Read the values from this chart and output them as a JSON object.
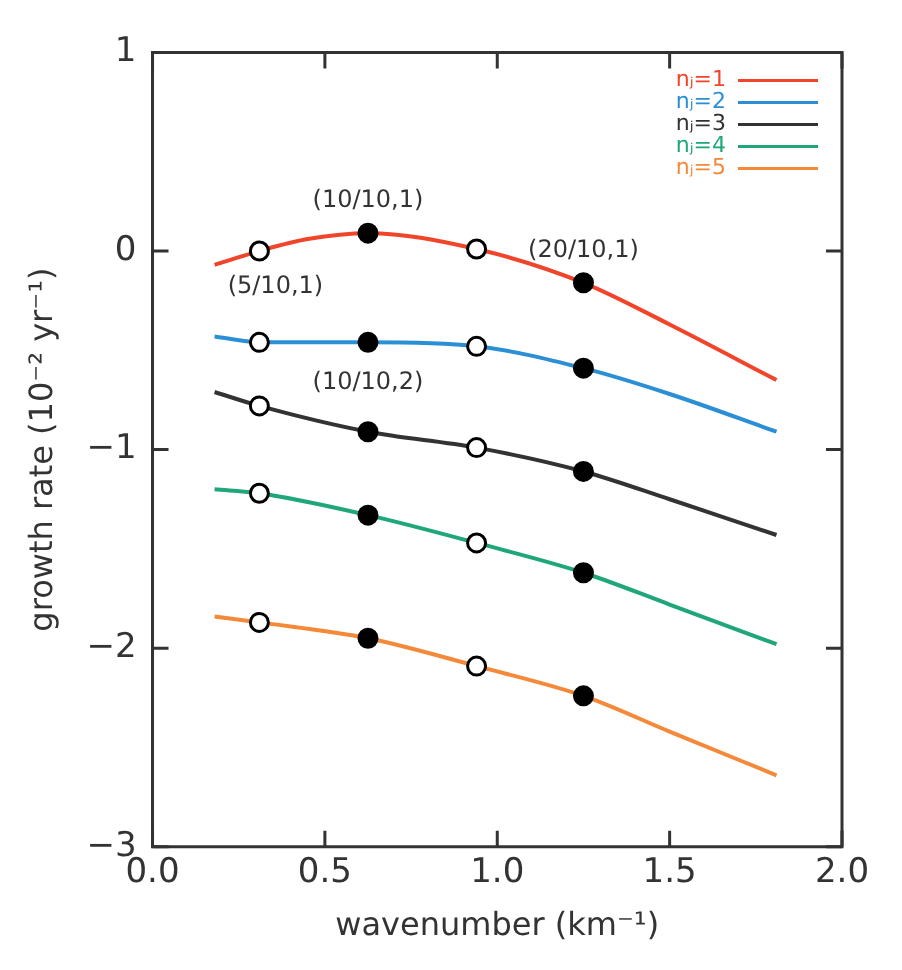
{
  "chart_data": {
    "type": "line",
    "xlabel": "wavenumber (km⁻¹)",
    "ylabel": "growth rate (10⁻² yr⁻¹)",
    "xlim": [
      0,
      2
    ],
    "xticks": [
      {
        "value": 0,
        "label": "0.0"
      },
      {
        "value": 0.5,
        "label": "0.5"
      },
      {
        "value": 1,
        "label": "1.0"
      },
      {
        "value": 1.5,
        "label": "1.5"
      },
      {
        "value": 2,
        "label": "2.0"
      }
    ],
    "ylim": [
      -3,
      1
    ],
    "yticks": [
      -3,
      -2,
      -1,
      0,
      1
    ],
    "grid": false,
    "legend": "top right",
    "marker": "none",
    "line_style": "solid",
    "series": [
      {
        "name": "nⱼ=1",
        "color": "#f0452b",
        "x": [
          0.18,
          0.31,
          0.45,
          0.625,
          0.94,
          1.25,
          1.5,
          1.81
        ],
        "values": [
          -0.07,
          0.0,
          0.06,
          0.09,
          0.01,
          -0.16,
          -0.37,
          -0.65
        ]
      },
      {
        "name": "nⱼ=2",
        "color": "#2b8fd6",
        "x": [
          0.18,
          0.31,
          0.625,
          0.94,
          1.25,
          1.5,
          1.81
        ],
        "values": [
          -0.43,
          -0.46,
          -0.46,
          -0.48,
          -0.59,
          -0.72,
          -0.91
        ]
      },
      {
        "name": "nⱼ=3",
        "color": "#333333",
        "x": [
          0.18,
          0.31,
          0.625,
          0.94,
          1.25,
          1.5,
          1.81
        ],
        "values": [
          -0.71,
          -0.78,
          -0.91,
          -0.99,
          -1.11,
          -1.25,
          -1.43
        ]
      },
      {
        "name": "nⱼ=4",
        "color": "#1fa67a",
        "x": [
          0.18,
          0.31,
          0.625,
          0.94,
          1.25,
          1.5,
          1.81
        ],
        "values": [
          -1.2,
          -1.22,
          -1.33,
          -1.47,
          -1.62,
          -1.78,
          -1.98
        ]
      },
      {
        "name": "nⱼ=5",
        "color": "#f5893a",
        "x": [
          0.18,
          0.31,
          0.625,
          0.94,
          1.25,
          1.5,
          1.81
        ],
        "values": [
          -1.84,
          -1.87,
          -1.95,
          -2.09,
          -2.24,
          -2.42,
          -2.64
        ]
      },
      {
        "type": "scatter",
        "marker": "circle",
        "color": "#ffffff",
        "x": [
          0.31,
          0.94,
          0.31,
          0.94,
          0.31,
          0.94,
          0.31,
          0.94,
          0.31,
          0.94
        ],
        "values": [
          0.0,
          0.01,
          -0.46,
          -0.48,
          -0.78,
          -0.99,
          -1.22,
          -1.47,
          -1.87,
          -2.09
        ]
      },
      {
        "type": "scatter",
        "marker": "circle",
        "color": "#000000",
        "x": [
          0.625,
          1.25,
          0.625,
          1.25,
          0.625,
          1.25,
          0.625,
          1.25,
          0.625,
          1.25
        ],
        "values": [
          0.09,
          -0.16,
          -0.46,
          -0.59,
          -0.91,
          -1.11,
          -1.33,
          -1.62,
          -1.95,
          -2.24
        ]
      }
    ],
    "annotations": [
      {
        "text": "(5/10,1)",
        "x": 0.31,
        "y": 0.0
      },
      {
        "text": "(10/10,1)",
        "x": 0.625,
        "y": 0.09
      },
      {
        "text": "(20/10,1)",
        "x": 1.25,
        "y": -0.16
      },
      {
        "text": "(10/10,2)",
        "x": 0.625,
        "y": -0.46
      }
    ]
  }
}
